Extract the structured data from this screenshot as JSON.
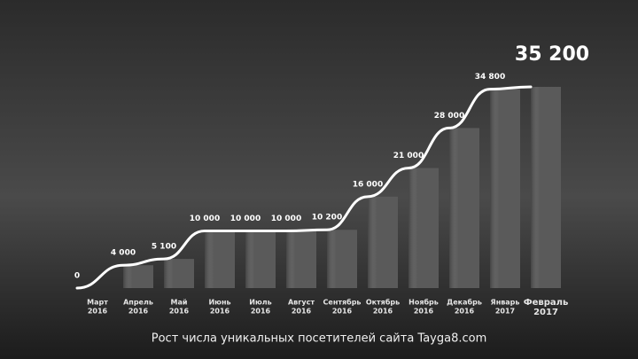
{
  "chart_data": {
    "type": "bar",
    "title": "Рост числа уникальных посетителей сайта Tayga8.com",
    "categories": [
      [
        "Март",
        "2016"
      ],
      [
        "Апрель",
        "2016"
      ],
      [
        "Май",
        "2016"
      ],
      [
        "Июнь",
        "2016"
      ],
      [
        "Июль",
        "2016"
      ],
      [
        "Август",
        "2016"
      ],
      [
        "Сентябрь",
        "2016"
      ],
      [
        "Октябрь",
        "2016"
      ],
      [
        "Ноябрь",
        "2016"
      ],
      [
        "Декабрь",
        "2016"
      ],
      [
        "Январь",
        "2017"
      ],
      [
        "Февраль",
        "2017"
      ]
    ],
    "values": [
      0,
      4000,
      5100,
      10000,
      10000,
      10000,
      10200,
      16000,
      21000,
      28000,
      34800,
      35200
    ],
    "value_labels": [
      "0",
      "4 000",
      "5 100",
      "10 000",
      "10 000",
      "10 000",
      "10 200",
      "16 000",
      "21 000",
      "28 000",
      "34 800",
      "35 200"
    ],
    "color": "#5a5a5a",
    "line_color": "#ffffff"
  }
}
